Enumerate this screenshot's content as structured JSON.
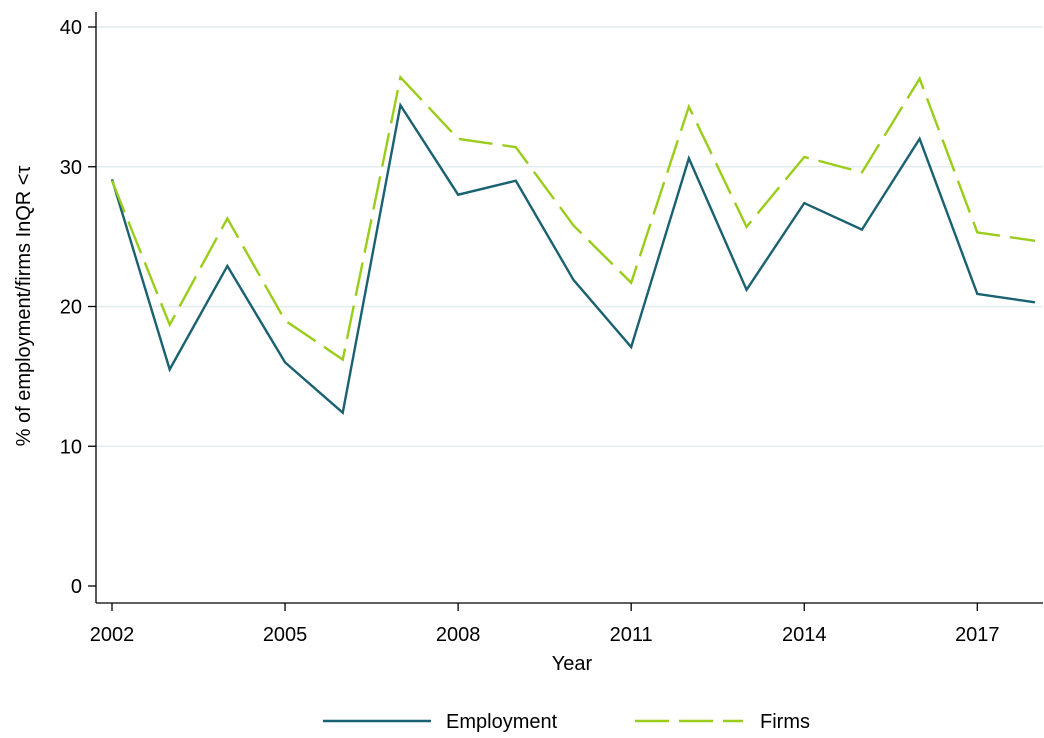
{
  "chart_data": {
    "type": "line",
    "title": "",
    "xlabel": "Year",
    "ylabel": "% of employment/firms InQR <τ",
    "x": [
      2002,
      2003,
      2004,
      2005,
      2006,
      2007,
      2008,
      2009,
      2010,
      2011,
      2012,
      2013,
      2014,
      2015,
      2016,
      2017,
      2018
    ],
    "series": [
      {
        "name": "Employment",
        "color": "#1a6172",
        "dash": "solid",
        "values": [
          29.1,
          15.5,
          22.9,
          16.0,
          12.4,
          34.4,
          28.0,
          29.0,
          21.9,
          17.1,
          30.6,
          21.2,
          27.4,
          25.5,
          32.0,
          20.9,
          20.3
        ]
      },
      {
        "name": "Firms",
        "color": "#9acd1a",
        "dash": "dashed",
        "values": [
          29.0,
          18.7,
          26.3,
          19.0,
          16.2,
          36.4,
          32.0,
          31.4,
          25.8,
          21.7,
          34.3,
          25.7,
          30.7,
          29.6,
          36.3,
          25.3,
          24.7
        ]
      }
    ],
    "xticks": [
      2002,
      2005,
      2008,
      2011,
      2014,
      2017
    ],
    "yticks": [
      0,
      10,
      20,
      30,
      40
    ],
    "xlim": [
      2002,
      2018
    ],
    "ylim": [
      0,
      40
    ],
    "grid": "horizontal",
    "gridColor": "#e3ecee",
    "legend": "bottom-center"
  }
}
